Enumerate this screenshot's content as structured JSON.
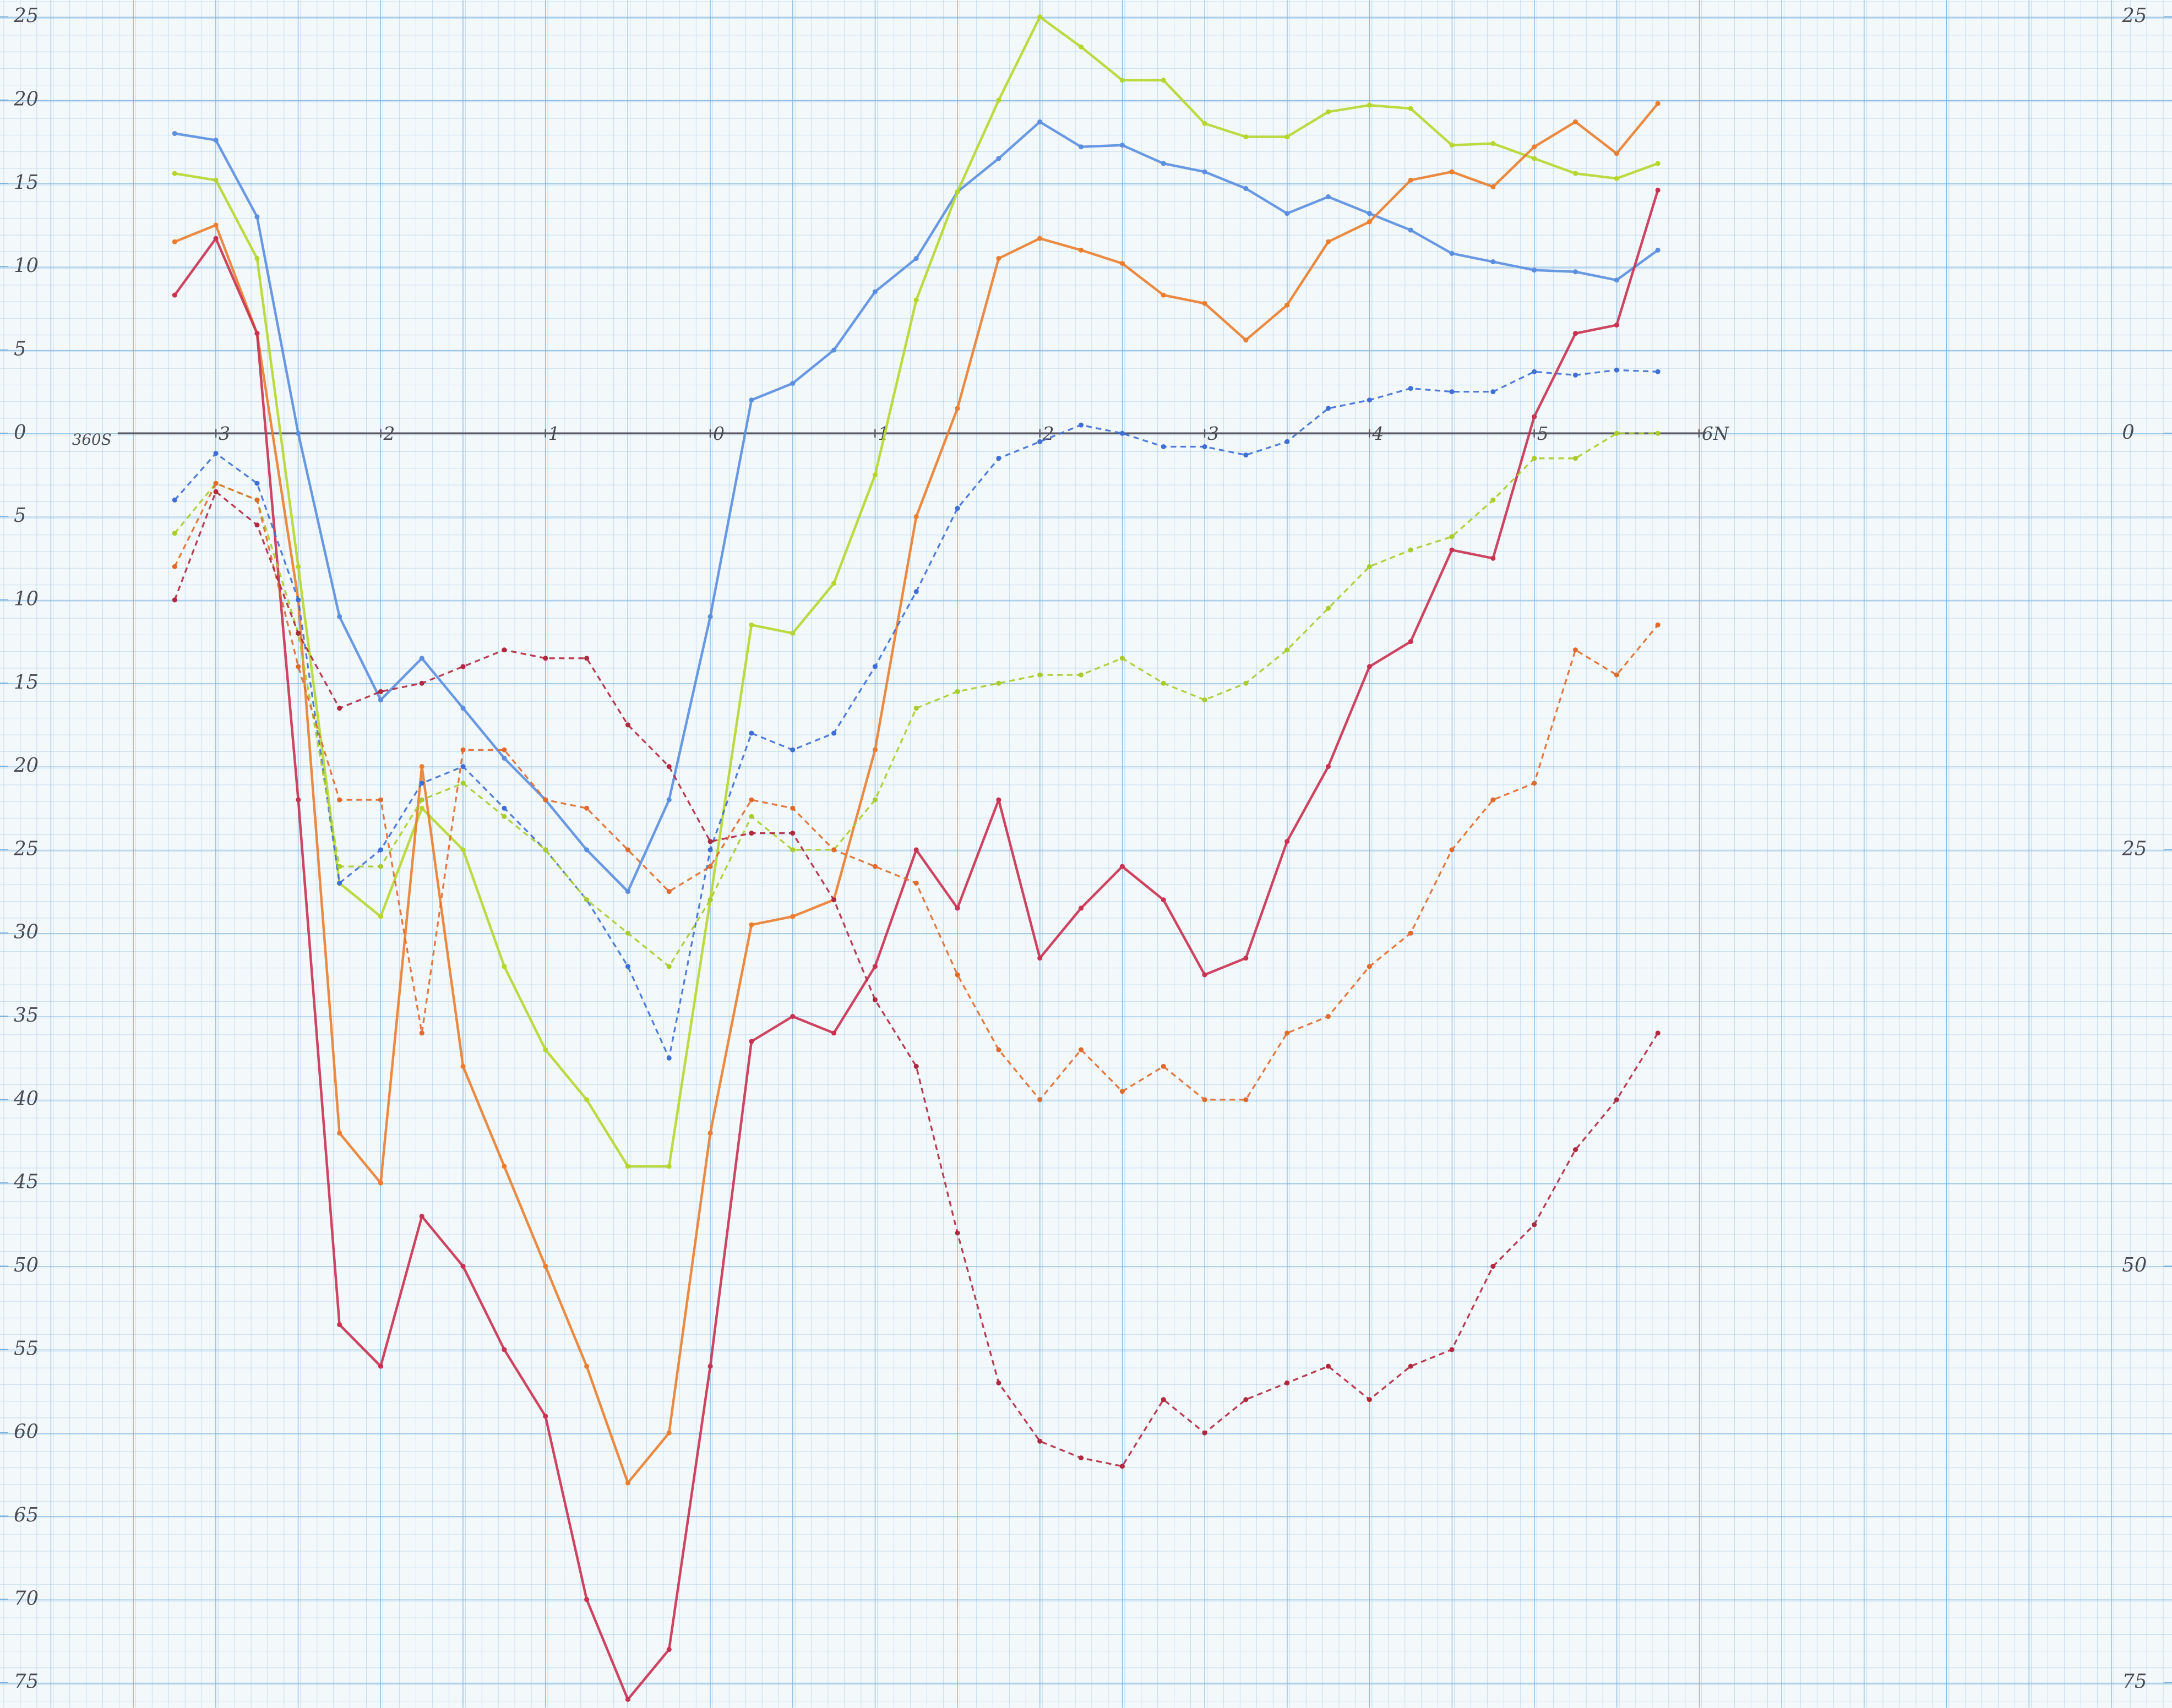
{
  "chart_data": {
    "type": "line",
    "annotation": "360S",
    "x": [
      -3.25,
      -3,
      -2.75,
      -2.5,
      -2.25,
      -2,
      -1.75,
      -1.5,
      -1.25,
      -1,
      -0.75,
      -0.5,
      -0.25,
      0,
      0.25,
      0.5,
      0.75,
      1,
      1.25,
      1.5,
      1.75,
      2,
      2.25,
      2.5,
      2.75,
      3,
      3.25,
      3.5,
      3.75,
      4,
      4.25,
      4.5,
      4.75,
      5,
      5.25,
      5.5,
      5.75
    ],
    "xlim": [
      -4.31,
      8.87
    ],
    "xticks": [
      {
        "value": -3,
        "label": "3"
      },
      {
        "value": -2,
        "label": "2"
      },
      {
        "value": -1,
        "label": "1"
      },
      0,
      1,
      2,
      3,
      4,
      5,
      {
        "value": 6,
        "label": "6N"
      }
    ],
    "ylim": [
      -76.5,
      26
    ],
    "yticks": [
      25,
      20,
      15,
      10,
      5,
      0,
      {
        "value": -5,
        "label": "5"
      },
      {
        "value": -10,
        "label": "10"
      },
      {
        "value": -15,
        "label": "15"
      },
      {
        "value": -20,
        "label": "20"
      },
      {
        "value": -25,
        "label": "25"
      },
      {
        "value": -30,
        "label": "30"
      },
      {
        "value": -35,
        "label": "35"
      },
      {
        "value": -40,
        "label": "40"
      },
      {
        "value": -45,
        "label": "45"
      },
      {
        "value": -50,
        "label": "50"
      },
      {
        "value": -55,
        "label": "55"
      },
      {
        "value": -60,
        "label": "60"
      },
      {
        "value": -65,
        "label": "65"
      },
      {
        "value": -70,
        "label": "70"
      },
      {
        "value": -75,
        "label": "75"
      }
    ],
    "y2lim": [
      -76.5,
      26
    ],
    "y2ticks": [
      25,
      0,
      {
        "value": -25,
        "label": "25"
      },
      {
        "value": -50,
        "label": "50"
      },
      {
        "value": -75,
        "label": "75"
      }
    ],
    "series": [
      {
        "color": "#5b8ee0",
        "dashed": false,
        "values": [
          18,
          17.6,
          13,
          0,
          -11,
          -16,
          -13.5,
          -16.5,
          -19.5,
          -22,
          -25,
          -27.5,
          -22,
          -11,
          2,
          3,
          5,
          8.5,
          10.5,
          14.5,
          16.5,
          18.7,
          17.2,
          17.3,
          16.2,
          15.7,
          14.7,
          13.2,
          14.2,
          13.2,
          12.2,
          10.8,
          10.3,
          9.8,
          9.7,
          9.2,
          11
        ]
      },
      {
        "color": "#b6d62c",
        "dashed": false,
        "values": [
          15.6,
          15.2,
          10.5,
          -8,
          -27,
          -29,
          -22.5,
          -25,
          -32,
          -37,
          -40,
          -44,
          -44,
          -28,
          -11.5,
          -12,
          -9,
          -2.5,
          8,
          14.5,
          20,
          25,
          23.2,
          21.2,
          21.2,
          18.6,
          17.8,
          17.8,
          19.3,
          19.7,
          19.5,
          17.3,
          17.4,
          16.5,
          15.6,
          15.3,
          16.2
        ]
      },
      {
        "color": "#ea7d2e",
        "dashed": false,
        "values": [
          11.5,
          12.5,
          6,
          -10,
          -42,
          -45,
          -20,
          -38,
          -44,
          -50,
          -56,
          -63,
          -60,
          -42,
          -29.5,
          -29,
          -28,
          -19,
          -5,
          1.5,
          10.5,
          11.7,
          11,
          10.2,
          8.3,
          7.8,
          5.6,
          7.7,
          11.5,
          12.7,
          15.2,
          15.7,
          14.8,
          17.2,
          18.7,
          16.8,
          19.8
        ]
      },
      {
        "color": "#c93150",
        "dashed": false,
        "values": [
          8.3,
          11.7,
          6,
          -22,
          -53.5,
          -56,
          -47,
          -50,
          -55,
          -59,
          -70,
          -76,
          -73,
          -56,
          -36.5,
          -35,
          -36,
          -32,
          -25,
          -28.5,
          -22,
          -31.5,
          -28.5,
          -26,
          -28,
          -32.5,
          -31.5,
          -24.5,
          -20,
          -14,
          -12.5,
          -7,
          -7.5,
          1,
          6,
          6.5,
          14.6
        ]
      },
      {
        "color": "#3f6fd6",
        "dashed": true,
        "values": [
          -4,
          -1.2,
          -3,
          -10,
          -27,
          -25,
          -21,
          -20,
          -22.5,
          -25,
          -28,
          -32,
          -37.5,
          -25,
          -18,
          -19,
          -18,
          -14,
          -9.5,
          -4.5,
          -1.5,
          -0.5,
          0.5,
          0,
          -0.8,
          -0.8,
          -1.3,
          -0.5,
          1.5,
          2,
          2.7,
          2.5,
          2.5,
          3.7,
          3.5,
          3.8,
          3.7
        ]
      },
      {
        "color": "#a8cc2a",
        "dashed": true,
        "values": [
          -6,
          -3,
          -4,
          -12,
          -26,
          -26,
          -22,
          -21,
          -23,
          -25,
          -28,
          -30,
          -32,
          -28,
          -23,
          -25,
          -25,
          -22,
          -16.5,
          -15.5,
          -15,
          -14.5,
          -14.5,
          -13.5,
          -15,
          -16,
          -15,
          -13,
          -10.5,
          -8,
          -7,
          -6.2,
          -4,
          -1.5,
          -1.5,
          0,
          0
        ]
      },
      {
        "color": "#e06a2c",
        "dashed": true,
        "values": [
          -8,
          -3,
          -4,
          -14,
          -22,
          -22,
          -36,
          -19,
          -19,
          -22,
          -22.5,
          -25,
          -27.5,
          -26,
          -22,
          -22.5,
          -25,
          -26,
          -27,
          -32.5,
          -37,
          -40,
          -37,
          -39.5,
          -38,
          -40,
          -40,
          -36,
          -35,
          -32,
          -30,
          -25,
          -22,
          -21,
          -13,
          -14.5,
          -11.5
        ]
      },
      {
        "color": "#b0283e",
        "dashed": true,
        "values": [
          -10,
          -3.5,
          -5.5,
          -12,
          -16.5,
          -15.5,
          -15,
          -14,
          -13,
          -13.5,
          -13.5,
          -17.5,
          -20,
          -24.5,
          -24,
          -24,
          -28,
          -34,
          -38,
          -48,
          -57,
          -60.5,
          -61.5,
          -62,
          -58,
          -60,
          -58,
          -57,
          -56,
          -58,
          -56,
          -55,
          -50,
          -47.5,
          -43,
          -40,
          -36
        ]
      }
    ]
  }
}
